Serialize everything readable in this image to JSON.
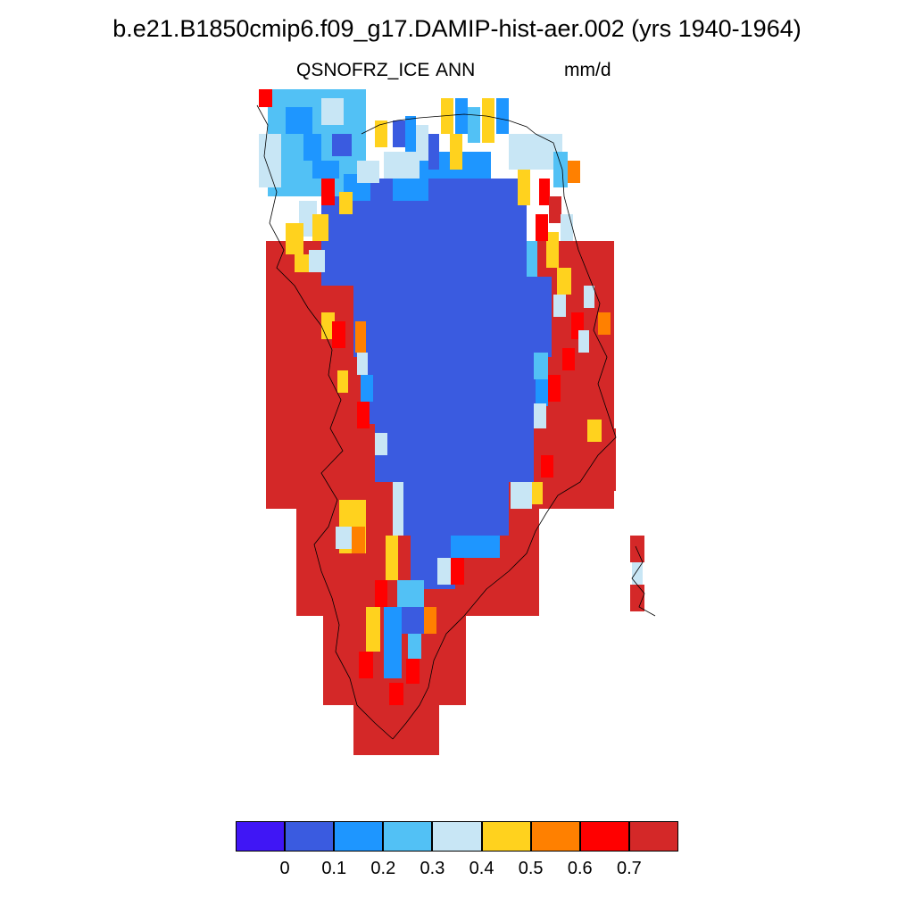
{
  "title": "b.e21.B1850cmip6.f09_g17.DAMIP-hist-aer.002 (yrs 1940-1964)",
  "subtitle_left": "QSNOFRZ_ICE",
  "subtitle_center": "ANN",
  "subtitle_right": "mm/d",
  "colorbar": {
    "colors": [
      "#4016f5",
      "#3a5be0",
      "#1e96ff",
      "#52c1f5",
      "#c8e6f5",
      "#ffd21e",
      "#ff8000",
      "#ff0000",
      "#d42828"
    ],
    "labels": [
      "0",
      "0.1",
      "0.2",
      "0.3",
      "0.4",
      "0.5",
      "0.6",
      "0.7"
    ]
  }
}
